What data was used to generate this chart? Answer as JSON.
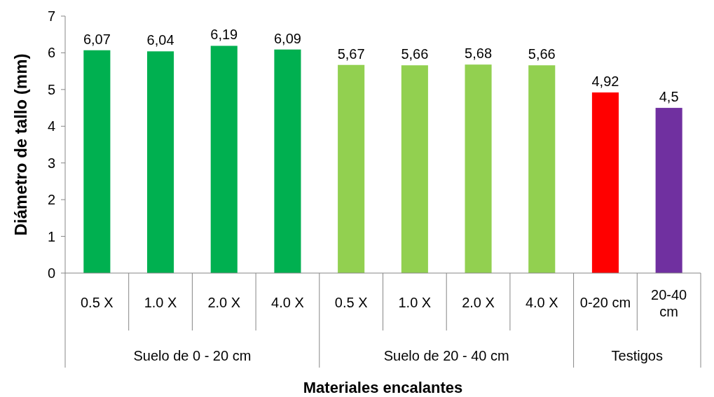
{
  "chart_data": {
    "type": "bar",
    "xlabel": "Materiales encalantes",
    "ylabel": "Diámetro de tallo (mm)",
    "categories": [
      "0.5 X",
      "1.0 X",
      "2.0 X",
      "4.0 X",
      "0.5 X",
      "1.0 X",
      "2.0 X",
      "4.0 X",
      "0-20 cm",
      "20-40 cm"
    ],
    "values": [
      6.07,
      6.04,
      6.19,
      6.09,
      5.67,
      5.66,
      5.68,
      5.66,
      4.92,
      4.5
    ],
    "value_labels": [
      "6,07",
      "6,04",
      "6,19",
      "6,09",
      "5,67",
      "5,66",
      "5,68",
      "5,66",
      "4,92",
      "4,5"
    ],
    "colors": [
      "#00b050",
      "#00b050",
      "#00b050",
      "#00b050",
      "#92d050",
      "#92d050",
      "#92d050",
      "#92d050",
      "#ff0000",
      "#7030a0"
    ],
    "annotations": [
      "Suelo de 0 - 20 cm",
      "Suelo de 20 - 40 cm",
      "Testigos"
    ],
    "ylim": [
      0,
      7
    ],
    "yticks": [
      0,
      1,
      2,
      3,
      4,
      5,
      6,
      7
    ],
    "grid": false
  }
}
